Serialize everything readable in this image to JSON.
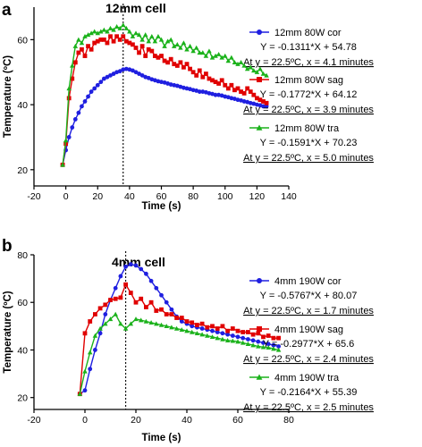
{
  "chart_data": [
    {
      "type": "line",
      "panel_letter": "a",
      "title": "12mm cell",
      "xlabel": "Time (s)",
      "ylabel": "Temperature (ºC)",
      "xlim": [
        -20,
        140
      ],
      "ylim": [
        15,
        70
      ],
      "xticks": [
        -20,
        0,
        20,
        40,
        60,
        80,
        100,
        120,
        140
      ],
      "yticks": [
        20,
        40,
        60
      ],
      "vline_x": 36,
      "legend_position": "right",
      "series": [
        {
          "name": "12mm 80W cor",
          "color": "#1f1fe0",
          "marker": "circle",
          "equation": "Y = -0.1311*X + 54.78",
          "note": "At y = 22.5ºC, x = 4.1 minutes",
          "x": [
            -2,
            0,
            2,
            4,
            6,
            8,
            10,
            12,
            14,
            16,
            18,
            20,
            22,
            24,
            26,
            28,
            30,
            32,
            34,
            36,
            38,
            40,
            42,
            44,
            46,
            48,
            50,
            52,
            54,
            56,
            58,
            60,
            62,
            64,
            66,
            68,
            70,
            72,
            74,
            76,
            78,
            80,
            82,
            84,
            86,
            88,
            90,
            92,
            94,
            96,
            98,
            100,
            102,
            104,
            106,
            108,
            110,
            112,
            114,
            116,
            118,
            120,
            122,
            124,
            126
          ],
          "y": [
            21.5,
            26,
            30,
            33,
            35.5,
            37.5,
            39.5,
            41,
            42.5,
            44,
            45,
            46,
            47,
            48,
            48.5,
            49,
            49.5,
            50,
            50.3,
            50.8,
            51,
            50.8,
            50.5,
            50,
            49.5,
            49,
            48.5,
            48.2,
            47.8,
            47.5,
            47.2,
            47,
            46.8,
            46.5,
            46.2,
            46,
            45.8,
            45.5,
            45.2,
            45,
            44.8,
            44.5,
            44.3,
            44,
            44,
            43.8,
            43.5,
            43.3,
            43,
            43,
            42.8,
            42.5,
            42.3,
            42,
            41.8,
            41.5,
            41.3,
            41,
            40.8,
            40.5,
            40.3,
            40,
            39.8,
            39.5,
            39.5
          ]
        },
        {
          "name": "12mm 80W sag",
          "color": "#e00000",
          "marker": "square",
          "equation": "Y = -0.1772*X + 64.12",
          "note": "At y = 22.5ºC, x = 3.9 minutes",
          "x": [
            -2,
            0,
            2,
            4,
            6,
            8,
            10,
            12,
            14,
            16,
            18,
            20,
            22,
            24,
            26,
            28,
            30,
            32,
            34,
            36,
            38,
            40,
            42,
            44,
            46,
            48,
            50,
            52,
            54,
            56,
            58,
            60,
            62,
            64,
            66,
            68,
            70,
            72,
            74,
            76,
            78,
            80,
            82,
            84,
            86,
            88,
            90,
            92,
            94,
            96,
            98,
            100,
            102,
            104,
            106,
            108,
            110,
            112,
            114,
            116,
            118,
            120,
            122,
            124,
            126
          ],
          "y": [
            21.5,
            28,
            42,
            48,
            53,
            56,
            57,
            55,
            58,
            57,
            59,
            59.5,
            60,
            60,
            59,
            61,
            59.5,
            61,
            60,
            61,
            59.5,
            59,
            58.5,
            57.5,
            56,
            58,
            55,
            57,
            56.5,
            55,
            54.5,
            55,
            53.5,
            53,
            54,
            52.5,
            52,
            53,
            51.5,
            52.5,
            51,
            50,
            49,
            50.5,
            48.5,
            49.5,
            48,
            47.5,
            47,
            46.5,
            47.5,
            46,
            45,
            46,
            44.5,
            45,
            44,
            43.5,
            45,
            44,
            43,
            42,
            41.5,
            41,
            40.5
          ]
        },
        {
          "name": "12mm 80W tra",
          "color": "#1bb21b",
          "marker": "triangle",
          "equation": "Y = -0.1591*X + 70.23",
          "note": "At y = 22.5ºC, x = 5.0 minutes",
          "x": [
            -2,
            0,
            2,
            4,
            6,
            8,
            10,
            12,
            14,
            16,
            18,
            20,
            22,
            24,
            26,
            28,
            30,
            32,
            34,
            36,
            38,
            40,
            42,
            44,
            46,
            48,
            50,
            52,
            54,
            56,
            58,
            60,
            62,
            64,
            66,
            68,
            70,
            72,
            74,
            76,
            78,
            80,
            82,
            84,
            86,
            88,
            90,
            92,
            94,
            96,
            98,
            100,
            102,
            104,
            106,
            108,
            110,
            112,
            114,
            116,
            118,
            120,
            122,
            124,
            126
          ],
          "y": [
            21.5,
            29,
            45,
            52,
            58,
            60,
            59,
            61,
            61.5,
            62,
            62.5,
            62,
            62.5,
            63,
            62.5,
            63.5,
            63,
            64,
            63.5,
            64.5,
            63.5,
            62.5,
            61,
            62,
            61.5,
            60,
            61.5,
            59.5,
            61,
            59.5,
            61,
            60,
            58,
            59.5,
            60,
            58,
            58.5,
            57.5,
            59,
            57,
            58,
            56.5,
            57.5,
            56,
            56,
            55,
            56.5,
            54.5,
            55,
            55.5,
            54.5,
            55,
            53.5,
            54.5,
            53,
            52.5,
            53,
            52,
            51,
            51.5,
            50.5,
            50,
            51,
            49.5,
            49
          ]
        }
      ]
    },
    {
      "type": "line",
      "panel_letter": "b",
      "title": "4mm cell",
      "xlabel": "Time (s)",
      "ylabel": "Temperature (ºC)",
      "xlim": [
        -20,
        80
      ],
      "ylim": [
        15,
        80
      ],
      "xticks": [
        -20,
        0,
        20,
        40,
        60,
        80
      ],
      "yticks": [
        20,
        40,
        60,
        80
      ],
      "vline_x": 16,
      "legend_position": "right",
      "series": [
        {
          "name": "4mm 190W cor",
          "color": "#1f1fe0",
          "marker": "circle",
          "equation": "Y = -0.5767*X + 80.07",
          "note": "At y = 22.5ºC, x = 1.7 minutes",
          "x": [
            -2,
            0,
            2,
            4,
            6,
            8,
            10,
            12,
            14,
            16,
            18,
            20,
            22,
            24,
            26,
            28,
            30,
            32,
            34,
            36,
            38,
            40,
            42,
            44,
            46,
            48,
            50,
            52,
            54,
            56,
            58,
            60,
            62,
            64,
            66,
            68,
            70,
            72,
            74,
            76
          ],
          "y": [
            21.5,
            23,
            32,
            40,
            47,
            55,
            61,
            66,
            71,
            75,
            76,
            75.5,
            74,
            72,
            69,
            66,
            63,
            60,
            57,
            54,
            52,
            51,
            50,
            49.5,
            49,
            48.5,
            48,
            47.5,
            47,
            46.5,
            46,
            45.5,
            45,
            44.5,
            44,
            43.5,
            43,
            42.5,
            42,
            41.5
          ]
        },
        {
          "name": "4mm 190W sag",
          "color": "#e00000",
          "marker": "square",
          "equation": "Y = -0.2977*X + 65.6",
          "note": "At y = 22.5ºC, x = 2.4 minutes",
          "x": [
            -2,
            0,
            2,
            4,
            6,
            8,
            10,
            12,
            14,
            16,
            18,
            20,
            22,
            24,
            26,
            28,
            30,
            32,
            34,
            36,
            38,
            40,
            42,
            44,
            46,
            48,
            50,
            52,
            54,
            56,
            58,
            60,
            62,
            64,
            66,
            68,
            70,
            72,
            74,
            76
          ],
          "y": [
            21.5,
            47,
            52,
            55,
            57.5,
            59,
            61,
            61.5,
            62,
            67.5,
            64,
            60,
            61.5,
            58,
            60,
            56.5,
            57,
            55,
            55,
            53.5,
            53.5,
            52,
            51.5,
            50.5,
            51,
            49.5,
            50,
            49,
            50,
            48,
            49,
            48,
            47.5,
            47.5,
            46.5,
            47,
            45.5,
            46,
            45,
            45
          ]
        },
        {
          "name": "4mm 190W tra",
          "color": "#1bb21b",
          "marker": "triangle",
          "equation": "Y = -0.2164*X + 55.39",
          "note": "At y = 22.5ºC, x = 2.5 minutes",
          "x": [
            -2,
            0,
            2,
            4,
            6,
            8,
            10,
            12,
            14,
            16,
            18,
            20,
            22,
            24,
            26,
            28,
            30,
            32,
            34,
            36,
            38,
            40,
            42,
            44,
            46,
            48,
            50,
            52,
            54,
            56,
            58,
            60,
            62,
            64,
            66,
            68,
            70,
            72,
            74,
            76
          ],
          "y": [
            21.5,
            31,
            39,
            46,
            49,
            51,
            53,
            55,
            51,
            49,
            51,
            53,
            52.5,
            52,
            51.5,
            51,
            50.5,
            50,
            49.5,
            49,
            48.5,
            48,
            47.5,
            47,
            46.5,
            46,
            45.5,
            45,
            44.5,
            44,
            43.8,
            43.5,
            43,
            42.5,
            42,
            41.5,
            41.2,
            41,
            40.5,
            40
          ]
        }
      ]
    }
  ]
}
